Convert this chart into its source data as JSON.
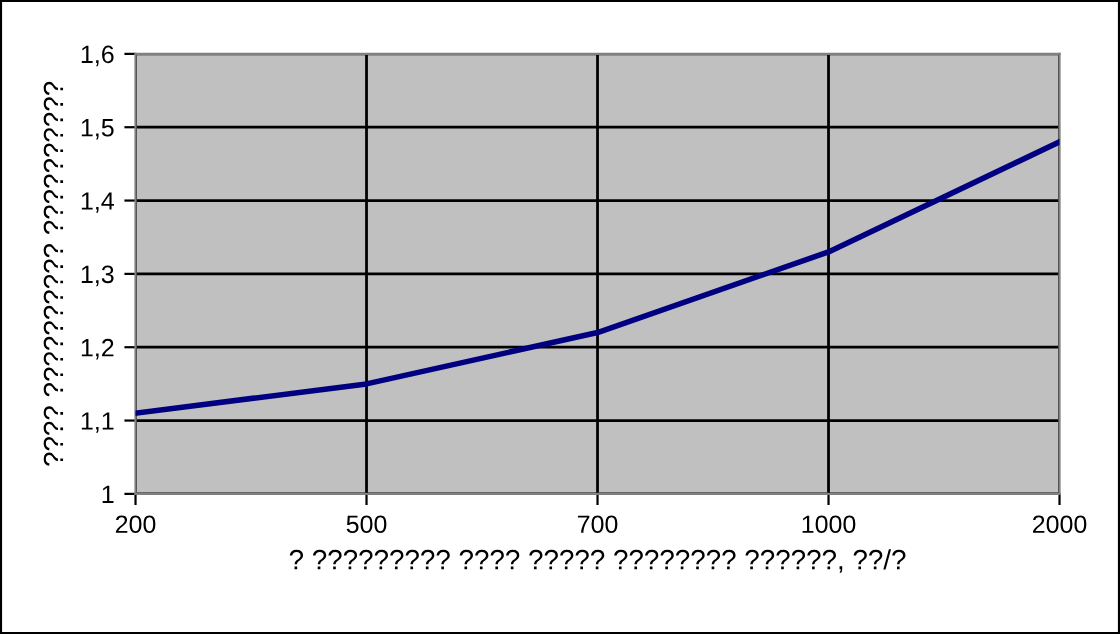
{
  "chart_data": {
    "type": "line",
    "xlabel": "? ????????? ???? ????? ???????? ??????, ??/?",
    "ylabel": "???? ?????????? ??????????",
    "categories": [
      "200",
      "500",
      "700",
      "1000",
      "2000"
    ],
    "series": [
      {
        "color": "#000080",
        "values": [
          1.11,
          1.15,
          1.22,
          1.33,
          1.48
        ]
      }
    ],
    "ylim": [
      1,
      1.6
    ],
    "yticks": [
      1,
      {
        "value": 1.1,
        "label": "1,1"
      },
      {
        "value": 1.2,
        "label": "1,2"
      },
      {
        "value": 1.3,
        "label": "1,3"
      },
      {
        "value": 1.4,
        "label": "1,4"
      },
      {
        "value": 1.5,
        "label": "1,5"
      },
      {
        "value": 1.6,
        "label": "1,6"
      }
    ],
    "grid": true,
    "legend": false,
    "marker": "none",
    "line_style": "solid"
  }
}
